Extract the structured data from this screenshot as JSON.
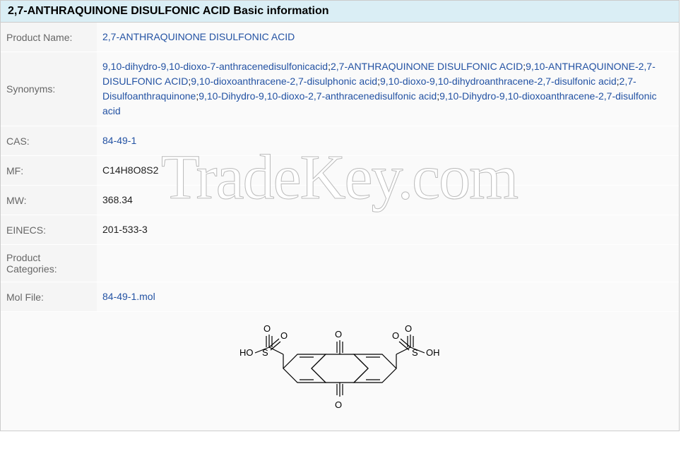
{
  "header": "2,7-ANTHRAQUINONE DISULFONIC ACID Basic information",
  "rows": {
    "productName": {
      "label": "Product Name:",
      "value": "2,7-ANTHRAQUINONE DISULFONIC ACID"
    },
    "synonyms": {
      "label": "Synonyms:",
      "items": [
        "9,10-dihydro-9,10-dioxo-7-anthracenedisulfonicacid",
        "2,7-ANTHRAQUINONE DISULFONIC ACID",
        "9,10-ANTHRAQUINONE-2,7-DISULFONIC ACID",
        "9,10-dioxoanthracene-2,7-disulphonic acid",
        "9,10-dioxo-9,10-dihydroanthracene-2,7-disulfonic acid",
        "2,7-Disulfoanthraquinone",
        "9,10-Dihydro-9,10-dioxo-2,7-anthracenedisulfonic acid",
        "9,10-Dihydro-9,10-dioxoanthracene-2,7-disulfonic acid"
      ]
    },
    "cas": {
      "label": "CAS:",
      "value": "84-49-1"
    },
    "mf": {
      "label": "MF:",
      "value": "C14H8O8S2"
    },
    "mw": {
      "label": "MW:",
      "value": "368.34"
    },
    "einecs": {
      "label": "EINECS:",
      "value": "201-533-3"
    },
    "categories": {
      "label": "Product Categories:",
      "value": ""
    },
    "molfile": {
      "label": "Mol File:",
      "value": "84-49-1.mol"
    }
  },
  "watermark": "TradeKey.com",
  "colors": {
    "headerBg": "#daeef5",
    "labelBg": "#f5f5f5",
    "valueBg": "#fafafa",
    "linkColor": "#2352a3",
    "textColor": "#222",
    "labelColor": "#666",
    "border": "#ccc"
  }
}
